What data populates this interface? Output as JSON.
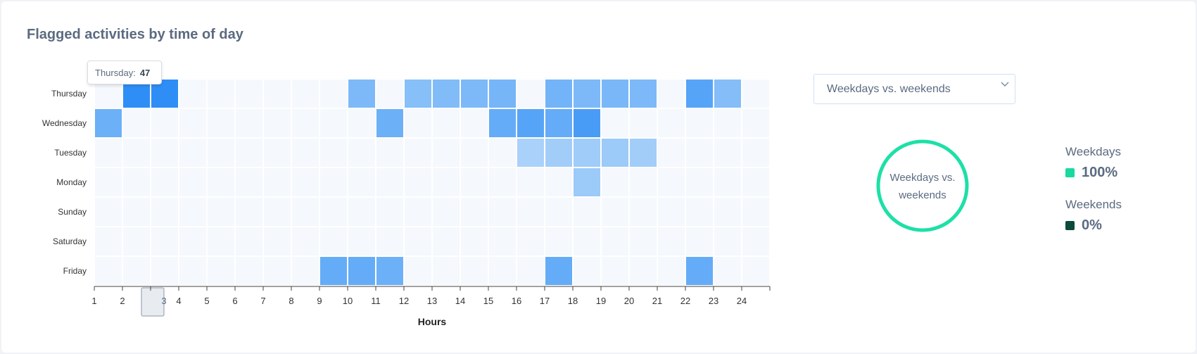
{
  "title": "Flagged activities by time of day",
  "tooltip": {
    "label": "Thursday:",
    "value": "47"
  },
  "select": {
    "value": "Weekdays vs. weekends"
  },
  "donut": {
    "label_line1": "Weekdays vs.",
    "label_line2": "weekends",
    "color": "#1de0a7"
  },
  "legend": [
    {
      "name": "Weekdays",
      "value": "100%",
      "color": "#19d9a0"
    },
    {
      "name": "Weekends",
      "value": "0%",
      "color": "#0b4a3c"
    }
  ],
  "chart_data": {
    "type": "heatmap",
    "title": "Flagged activities by time of day",
    "xlabel": "Hours",
    "ylabel": "",
    "x": [
      "1",
      "2",
      "3",
      "4",
      "5",
      "6",
      "7",
      "8",
      "9",
      "10",
      "11",
      "12",
      "13",
      "14",
      "15",
      "16",
      "17",
      "18",
      "19",
      "20",
      "21",
      "22",
      "23",
      "24"
    ],
    "y": [
      "Thursday",
      "Wednesday",
      "Tuesday",
      "Monday",
      "Sunday",
      "Saturday",
      "Friday"
    ],
    "highlighted_x": "3",
    "values": [
      [
        0,
        47,
        47,
        0,
        0,
        0,
        0,
        0,
        0,
        25,
        0,
        22,
        24,
        25,
        27,
        0,
        28,
        25,
        26,
        25,
        0,
        36,
        23,
        0
      ],
      [
        30,
        0,
        0,
        0,
        0,
        0,
        0,
        0,
        0,
        0,
        30,
        0,
        0,
        0,
        32,
        36,
        32,
        40,
        0,
        0,
        0,
        0,
        0,
        0
      ],
      [
        0,
        0,
        0,
        0,
        0,
        0,
        0,
        0,
        0,
        0,
        0,
        0,
        0,
        0,
        0,
        12,
        14,
        15,
        16,
        14,
        0,
        0,
        0,
        0
      ],
      [
        0,
        0,
        0,
        0,
        0,
        0,
        0,
        0,
        0,
        0,
        0,
        0,
        0,
        0,
        0,
        0,
        0,
        16,
        0,
        0,
        0,
        0,
        0,
        0
      ],
      [
        0,
        0,
        0,
        0,
        0,
        0,
        0,
        0,
        0,
        0,
        0,
        0,
        0,
        0,
        0,
        0,
        0,
        0,
        0,
        0,
        0,
        0,
        0,
        0
      ],
      [
        0,
        0,
        0,
        0,
        0,
        0,
        0,
        0,
        0,
        0,
        0,
        0,
        0,
        0,
        0,
        0,
        0,
        0,
        0,
        0,
        0,
        0,
        0,
        0
      ],
      [
        0,
        0,
        0,
        0,
        0,
        0,
        0,
        0,
        32,
        32,
        30,
        0,
        0,
        0,
        0,
        0,
        32,
        0,
        0,
        0,
        0,
        32,
        0,
        0
      ]
    ],
    "color_scale": {
      "min": "#f5f8fc",
      "max": "#2e8ef5"
    }
  }
}
